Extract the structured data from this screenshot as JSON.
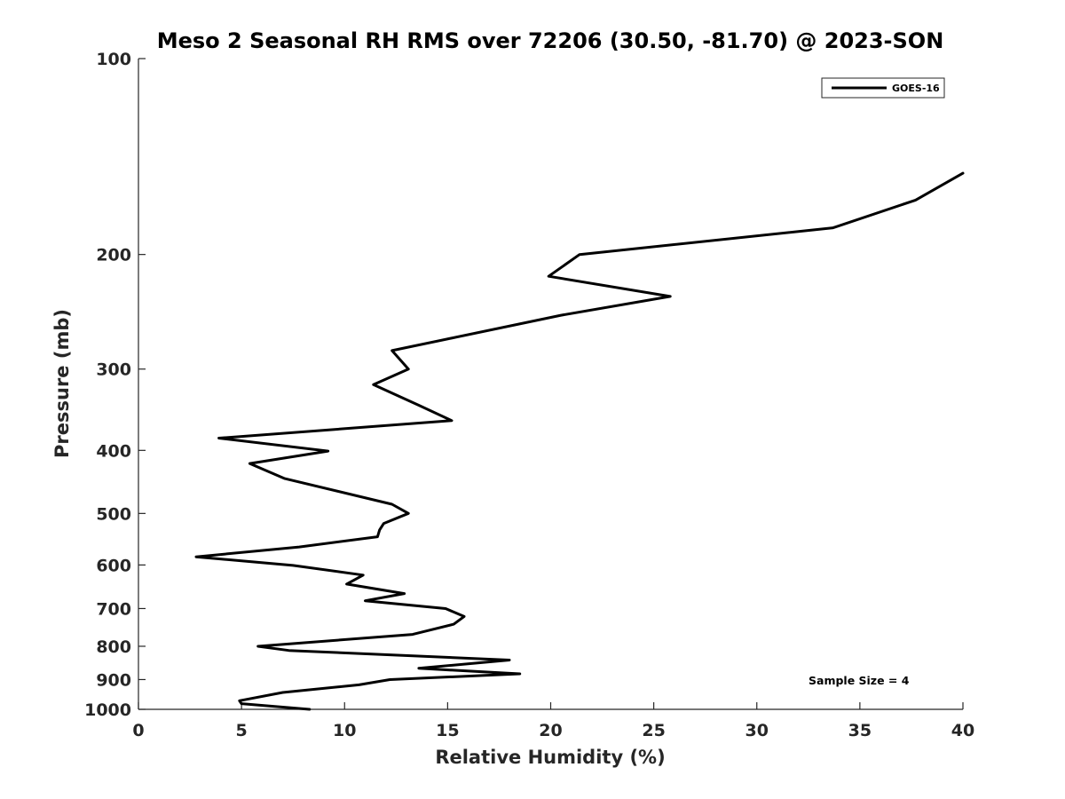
{
  "chart_data": {
    "type": "line",
    "title": "Meso 2 Seasonal RH RMS over 72206 (30.50, -81.70) @ 2023-SON",
    "xlabel": "Relative Humidity (%)",
    "ylabel": "Pressure (mb)",
    "xlim": [
      0,
      40
    ],
    "ylim": [
      100,
      1000
    ],
    "y_scale": "log",
    "y_direction": "reversed",
    "x_ticks": [
      "0",
      "5",
      "10",
      "15",
      "20",
      "25",
      "30",
      "35",
      "40"
    ],
    "y_ticks": [
      "100",
      "200",
      "300",
      "400",
      "500",
      "600",
      "700",
      "800",
      "900",
      "1000"
    ],
    "grid": false,
    "legend_position": "top-right",
    "annotation": "Sample Size = 4",
    "series": [
      {
        "name": "GOES-16",
        "color": "#000000",
        "x": [
          40.0,
          37.7,
          33.7,
          21.4,
          19.9,
          25.8,
          20.5,
          12.3,
          13.1,
          11.4,
          13.6,
          15.2,
          3.9,
          9.2,
          5.4,
          7.1,
          12.3,
          13.1,
          11.9,
          11.7,
          11.6,
          7.8,
          2.8,
          7.5,
          10.9,
          10.1,
          12.9,
          11.0,
          14.9,
          15.8,
          15.3,
          13.3,
          5.8,
          7.3,
          18.0,
          13.6,
          18.5,
          12.2,
          10.7,
          7.0,
          4.9,
          5.0,
          8.3
        ],
        "y": [
          150,
          165,
          182,
          200,
          216,
          232,
          248,
          281,
          300,
          317,
          341,
          360,
          383,
          401,
          419,
          442,
          484,
          500,
          518,
          530,
          543,
          563,
          583,
          601,
          622,
          642,
          664,
          681,
          700,
          720,
          740,
          767,
          800,
          812,
          840,
          865,
          882,
          900,
          917,
          942,
          970,
          980,
          1000
        ]
      }
    ]
  }
}
